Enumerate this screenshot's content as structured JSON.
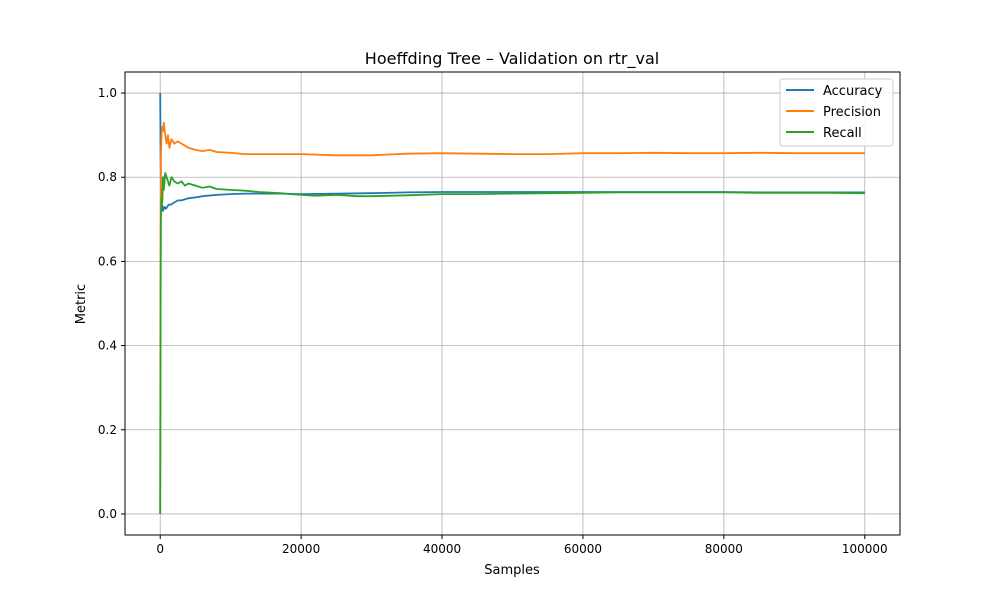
{
  "chart_data": {
    "type": "line",
    "title": "Hoeffding Tree – Validation on rtr_val",
    "xlabel": "Samples",
    "ylabel": "Metric",
    "xlim": [
      -5000,
      105000
    ],
    "ylim": [
      -0.05,
      1.05
    ],
    "xticks": [
      0,
      20000,
      40000,
      60000,
      80000,
      100000
    ],
    "xtick_labels": [
      "0",
      "20000",
      "40000",
      "60000",
      "80000",
      "100000"
    ],
    "yticks": [
      0.0,
      0.2,
      0.4,
      0.6,
      0.8,
      1.0
    ],
    "ytick_labels": [
      "0.0",
      "0.2",
      "0.4",
      "0.6",
      "0.8",
      "1.0"
    ],
    "grid": true,
    "legend_position": "top-right",
    "series": [
      {
        "name": "Accuracy",
        "color": "#1f77b4",
        "x": [
          0,
          50,
          100,
          200,
          300,
          400,
          600,
          800,
          1000,
          1200,
          1500,
          2000,
          2500,
          3000,
          4000,
          5000,
          6000,
          8000,
          10000,
          12000,
          14000,
          17000,
          20000,
          25000,
          30000,
          35000,
          40000,
          45000,
          50000,
          55000,
          60000,
          65000,
          70000,
          75000,
          80000,
          85000,
          90000,
          95000,
          100000
        ],
        "y": [
          1.0,
          0.85,
          0.78,
          0.74,
          0.73,
          0.72,
          0.73,
          0.725,
          0.73,
          0.735,
          0.735,
          0.74,
          0.745,
          0.745,
          0.75,
          0.752,
          0.755,
          0.758,
          0.76,
          0.761,
          0.761,
          0.761,
          0.76,
          0.761,
          0.762,
          0.764,
          0.765,
          0.765,
          0.765,
          0.765,
          0.765,
          0.765,
          0.765,
          0.765,
          0.765,
          0.764,
          0.764,
          0.764,
          0.764
        ]
      },
      {
        "name": "Precision",
        "color": "#ff7f0e",
        "x": [
          0,
          50,
          100,
          200,
          300,
          400,
          500,
          700,
          900,
          1100,
          1300,
          1600,
          2000,
          2500,
          3000,
          3500,
          4000,
          5000,
          6000,
          7000,
          8000,
          10000,
          12000,
          15000,
          18000,
          20000,
          25000,
          30000,
          35000,
          40000,
          45000,
          50000,
          55000,
          60000,
          65000,
          70000,
          75000,
          80000,
          85000,
          90000,
          95000,
          100000
        ],
        "y": [
          0.0,
          0.7,
          0.85,
          0.9,
          0.92,
          0.91,
          0.93,
          0.9,
          0.88,
          0.9,
          0.87,
          0.89,
          0.88,
          0.885,
          0.88,
          0.875,
          0.87,
          0.865,
          0.862,
          0.865,
          0.86,
          0.858,
          0.855,
          0.855,
          0.855,
          0.855,
          0.852,
          0.852,
          0.856,
          0.857,
          0.856,
          0.855,
          0.855,
          0.857,
          0.857,
          0.858,
          0.857,
          0.857,
          0.858,
          0.857,
          0.857,
          0.857
        ]
      },
      {
        "name": "Recall",
        "color": "#2ca02c",
        "x": [
          0,
          50,
          100,
          200,
          300,
          400,
          500,
          700,
          900,
          1100,
          1300,
          1600,
          2000,
          2500,
          3000,
          3500,
          4000,
          5000,
          6000,
          7000,
          8000,
          10000,
          12000,
          14000,
          17000,
          20000,
          22000,
          25000,
          28000,
          30000,
          35000,
          40000,
          45000,
          50000,
          55000,
          60000,
          65000,
          70000,
          75000,
          80000,
          85000,
          90000,
          95000,
          100000
        ],
        "y": [
          0.0,
          0.5,
          0.7,
          0.75,
          0.74,
          0.8,
          0.77,
          0.81,
          0.8,
          0.79,
          0.78,
          0.8,
          0.79,
          0.785,
          0.79,
          0.78,
          0.785,
          0.78,
          0.775,
          0.778,
          0.772,
          0.77,
          0.768,
          0.765,
          0.762,
          0.758,
          0.756,
          0.758,
          0.755,
          0.755,
          0.757,
          0.76,
          0.76,
          0.761,
          0.762,
          0.763,
          0.764,
          0.764,
          0.764,
          0.764,
          0.763,
          0.763,
          0.763,
          0.762
        ]
      }
    ]
  }
}
